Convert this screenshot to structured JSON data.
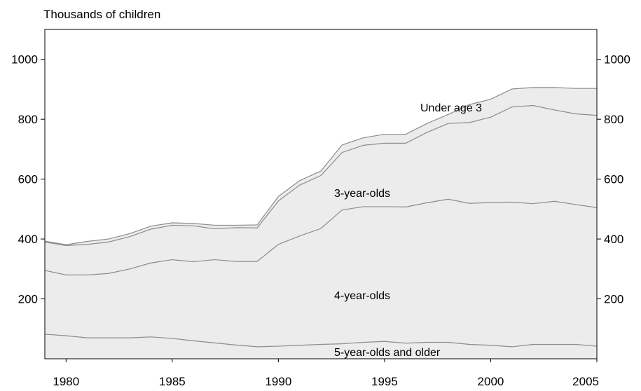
{
  "chart_data": {
    "type": "area",
    "stacked": true,
    "title": "",
    "ylabel": "Thousands of children",
    "xlabel": "",
    "xlim": [
      1979,
      2005
    ],
    "ylim": [
      0,
      1100
    ],
    "x_ticks": [
      1980,
      1985,
      1990,
      1995,
      2000,
      2005
    ],
    "y_ticks": [
      200,
      400,
      600,
      800,
      1000
    ],
    "grid": false,
    "legend": "inline labels",
    "colors": {
      "fill": "#ececec",
      "line": "#8c8c8c",
      "axis": "#000000"
    },
    "x": [
      1979,
      1980,
      1981,
      1982,
      1983,
      1984,
      1985,
      1986,
      1987,
      1988,
      1989,
      1990,
      1991,
      1992,
      1993,
      1994,
      1995,
      1996,
      1997,
      1998,
      1999,
      2000,
      2001,
      2002,
      2003,
      2004,
      2005
    ],
    "series": [
      {
        "name": "5-year-olds and older",
        "values": [
          82,
          77,
          70,
          70,
          70,
          73,
          68,
          60,
          53,
          46,
          40,
          42,
          45,
          48,
          50,
          55,
          58,
          52,
          55,
          55,
          48,
          45,
          40,
          48,
          48,
          48,
          42
        ]
      },
      {
        "name": "4-year-olds",
        "values": [
          213,
          203,
          210,
          215,
          230,
          247,
          263,
          264,
          278,
          279,
          285,
          340,
          365,
          387,
          447,
          453,
          450,
          455,
          466,
          478,
          471,
          477,
          483,
          470,
          478,
          467,
          463
        ]
      },
      {
        "name": "3-year-olds",
        "values": [
          95,
          98,
          102,
          105,
          108,
          113,
          115,
          120,
          103,
          113,
          112,
          145,
          170,
          177,
          192,
          205,
          212,
          213,
          235,
          253,
          270,
          285,
          318,
          328,
          305,
          303,
          308
        ]
      },
      {
        "name": "Under age 3",
        "values": [
          3,
          3,
          10,
          10,
          10,
          10,
          8,
          8,
          12,
          8,
          10,
          15,
          15,
          15,
          25,
          25,
          30,
          30,
          30,
          30,
          60,
          60,
          60,
          60,
          75,
          85,
          90
        ]
      }
    ],
    "labels": {
      "under3": "Under age 3",
      "three": "3-year-olds",
      "four": "4-year-olds",
      "five": "5-year-olds and older"
    }
  }
}
